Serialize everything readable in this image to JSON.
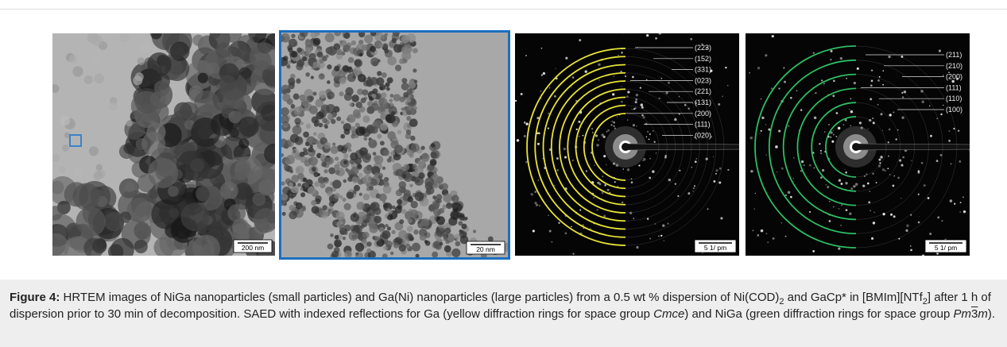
{
  "panels": [
    {
      "scale_bar": "200 nm"
    },
    {
      "scale_bar": "20 nm"
    },
    {
      "scale_bar": "5 1/ pm",
      "reflections": [
        "(223)",
        "(152)",
        "(331)",
        "(023)",
        "(221)",
        "(131)",
        "(200)",
        "(111)",
        "(020)"
      ]
    },
    {
      "scale_bar": "5 1/ pm",
      "reflections": [
        "(211)",
        "(210)",
        "(200)",
        "(111)",
        "(110)",
        "(100)"
      ]
    }
  ],
  "caption": {
    "label": "Figure 4:",
    "parts": [
      " HRTEM images of NiGa nanoparticles (small particles) and Ga(Ni) nanoparticles (large particles) from a 0.5 wt % dispersion of Ni(COD)",
      "2",
      " and GaCp* in [BMIm][NTf",
      "2",
      "] after 1 h of dispersion prior to 30 min of decomposition. SAED with indexed reflections for Ga (yellow diffraction rings for space group ",
      "Cmce",
      ") and NiGa (green diffraction rings for space group ",
      "Pm",
      "3",
      "m",
      ")."
    ]
  }
}
